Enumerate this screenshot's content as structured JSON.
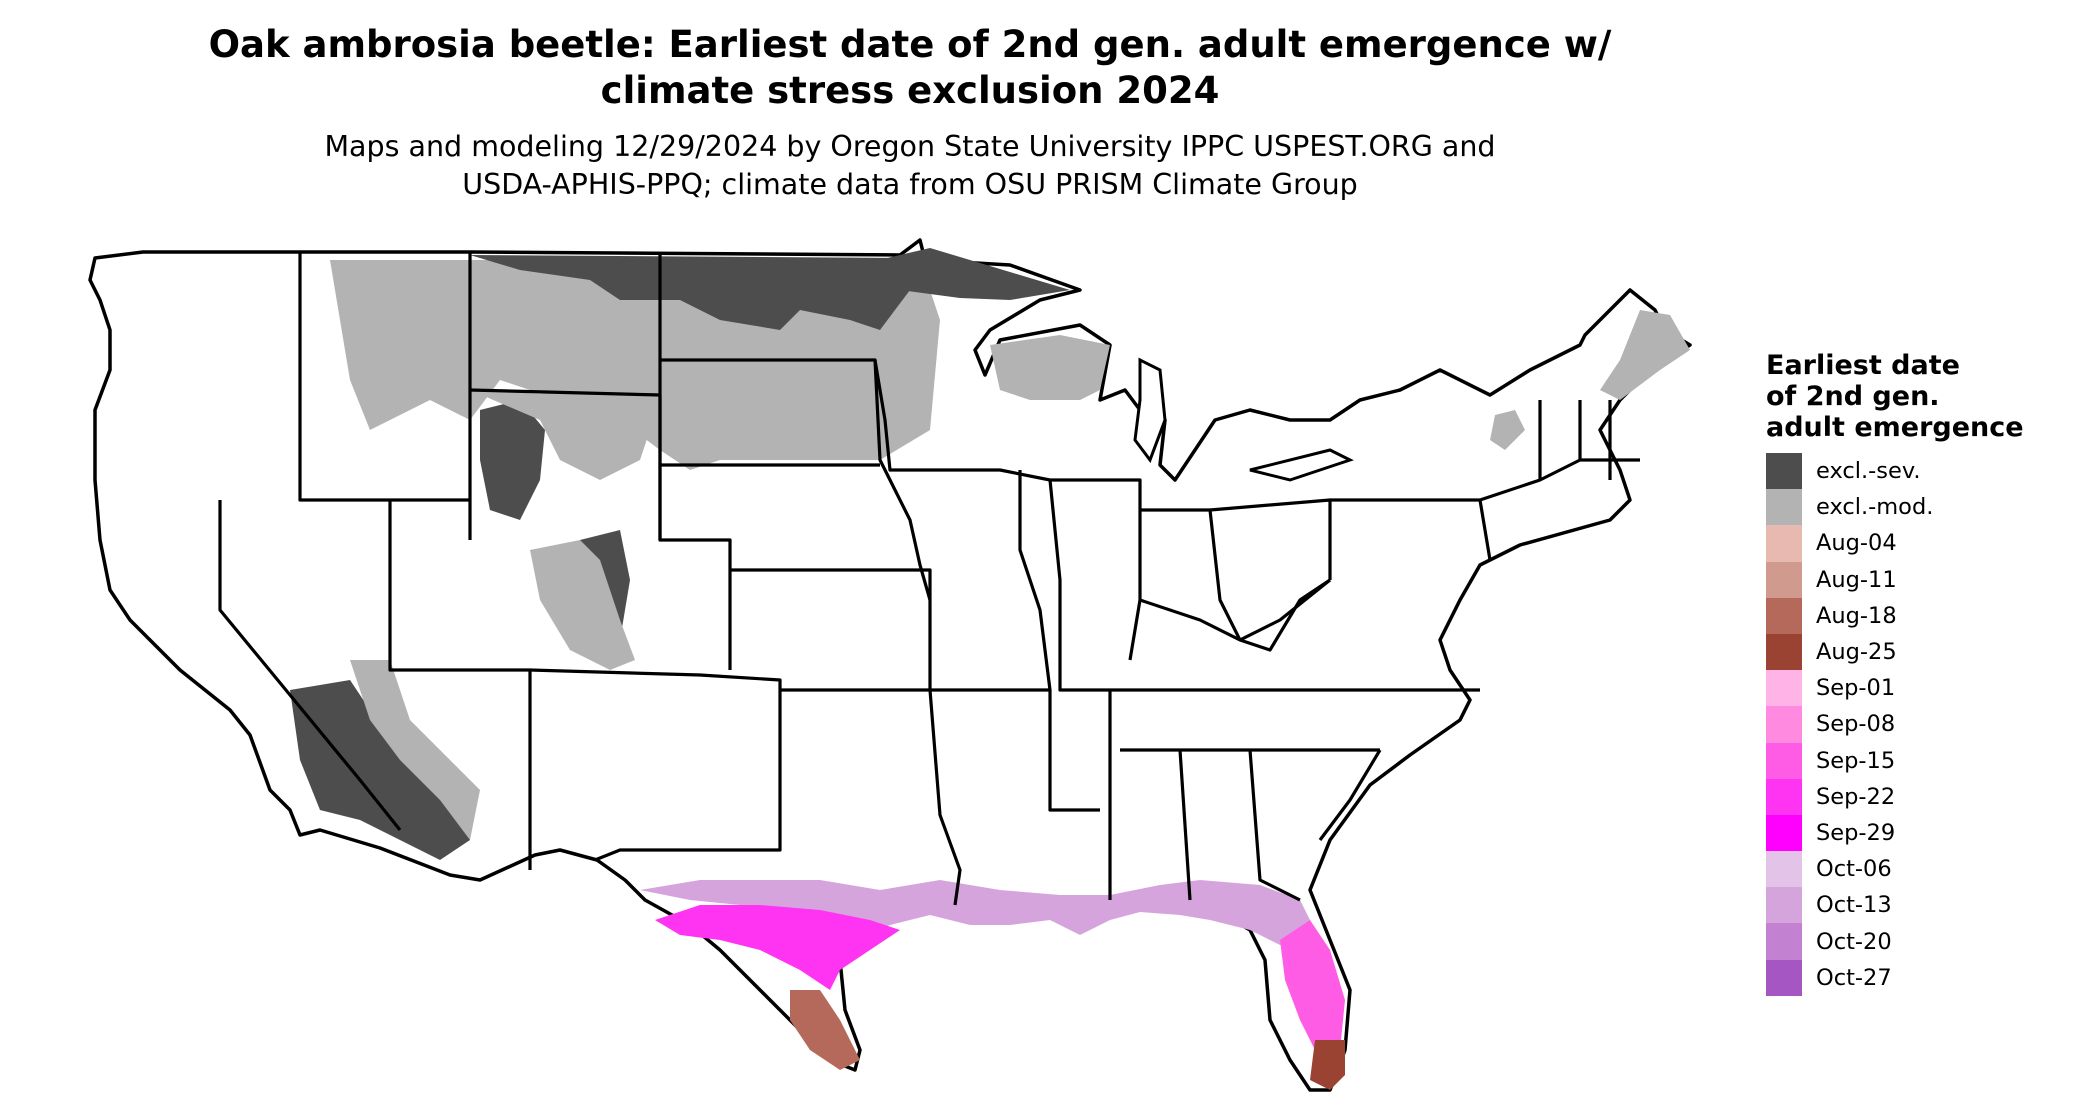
{
  "title": {
    "line1": "Oak ambrosia beetle: Earliest date of 2nd gen. adult emergence w/",
    "line2": "climate stress exclusion 2024"
  },
  "subtitle": {
    "line1": "Maps and modeling 12/29/2024 by Oregon State University IPPC USPEST.ORG and",
    "line2": "USDA-APHIS-PPQ; climate data from OSU PRISM Climate Group"
  },
  "legend": {
    "title_lines": [
      "Earliest date",
      "of 2nd gen.",
      "adult emergence"
    ],
    "items": [
      {
        "label": "excl.-sev.",
        "color": "#4d4d4d"
      },
      {
        "label": "excl.-mod.",
        "color": "#b3b3b3"
      },
      {
        "label": "Aug-04",
        "color": "#e8b9b0"
      },
      {
        "label": "Aug-11",
        "color": "#d09a8e"
      },
      {
        "label": "Aug-18",
        "color": "#b5695a"
      },
      {
        "label": "Aug-25",
        "color": "#9a4332"
      },
      {
        "label": "Sep-01",
        "color": "#ffb3e6"
      },
      {
        "label": "Sep-08",
        "color": "#ff8ae0"
      },
      {
        "label": "Sep-15",
        "color": "#ff5ce6"
      },
      {
        "label": "Sep-22",
        "color": "#ff33f2"
      },
      {
        "label": "Sep-29",
        "color": "#ff00ff"
      },
      {
        "label": "Oct-06",
        "color": "#e3c4e8"
      },
      {
        "label": "Oct-13",
        "color": "#d6a4dd"
      },
      {
        "label": "Oct-20",
        "color": "#c281d1"
      },
      {
        "label": "Oct-27",
        "color": "#a656c2"
      }
    ]
  }
}
